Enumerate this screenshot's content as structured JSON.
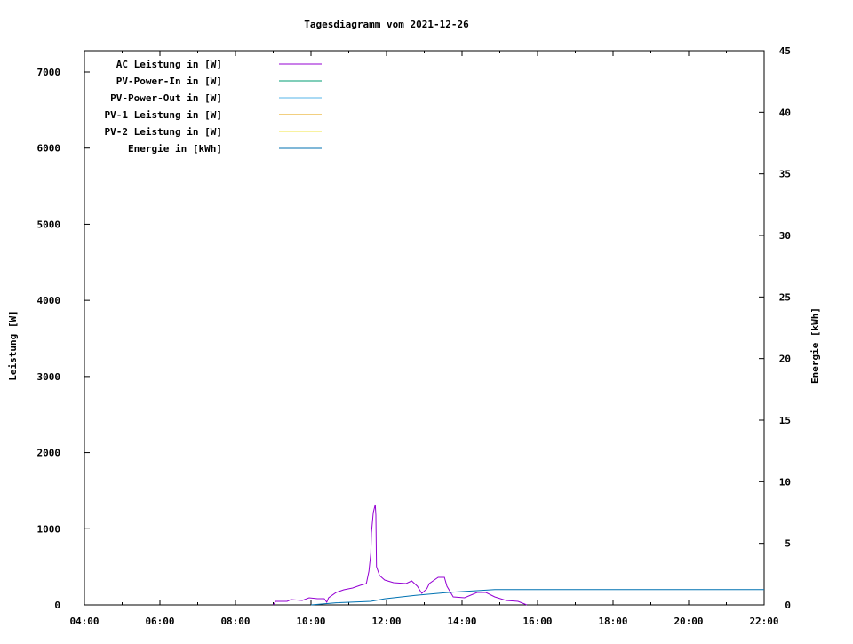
{
  "chart_data": {
    "type": "line",
    "title": "Tagesdiagramm vom 2021-12-26",
    "ylabel": "Leistung [W]",
    "y2label": "Energie [kWh]",
    "xlim": [
      "04:00",
      "22:00"
    ],
    "ylim": [
      0,
      7280
    ],
    "y2lim": [
      0,
      45
    ],
    "xticks": [
      "04:00",
      "06:00",
      "08:00",
      "10:00",
      "12:00",
      "14:00",
      "16:00",
      "18:00",
      "20:00",
      "22:00"
    ],
    "yticks": [
      0,
      1000,
      2000,
      3000,
      4000,
      5000,
      6000,
      7000
    ],
    "y2ticks": [
      0,
      5,
      10,
      15,
      20,
      25,
      30,
      35,
      40,
      45
    ],
    "grid": false,
    "legend_position": "top-left",
    "series": [
      {
        "name": "AC Leistung in [W]",
        "axis": "y",
        "color": "#9400d3",
        "x": [
          "09:00",
          "09:04",
          "09:22",
          "09:28",
          "09:46",
          "09:57",
          "10:10",
          "10:21",
          "10:25",
          "10:28",
          "10:40",
          "10:52",
          "11:06",
          "11:18",
          "11:28",
          "11:32",
          "11:35",
          "11:36",
          "11:39",
          "11:42",
          "11:43",
          "11:44",
          "11:49",
          "11:57",
          "12:11",
          "12:31",
          "12:40",
          "12:49",
          "12:56",
          "13:04",
          "13:08",
          "13:22",
          "13:32",
          "13:36",
          "13:46",
          "14:04",
          "14:24",
          "14:38",
          "14:52",
          "15:10",
          "15:29",
          "15:43"
        ],
        "y": [
          0,
          47,
          47,
          70,
          58,
          93,
          82,
          82,
          35,
          93,
          163,
          198,
          222,
          257,
          280,
          443,
          677,
          945,
          1213,
          1318,
          1178,
          502,
          385,
          327,
          292,
          280,
          315,
          245,
          152,
          210,
          280,
          362,
          362,
          245,
          105,
          93,
          163,
          163,
          105,
          58,
          47,
          0
        ]
      },
      {
        "name": "PV-Power-In in [W]",
        "axis": "y",
        "color": "#009e73",
        "x": [],
        "y": []
      },
      {
        "name": "PV-Power-Out in [W]",
        "axis": "y",
        "color": "#56b4e9",
        "x": [],
        "y": []
      },
      {
        "name": "PV-1 Leistung in [W]",
        "axis": "y",
        "color": "#e69f00",
        "x": [],
        "y": []
      },
      {
        "name": "PV-2 Leistung in [W]",
        "axis": "y",
        "color": "#f0e442",
        "x": [],
        "y": []
      },
      {
        "name": "Energie in [kWh]",
        "axis": "y2",
        "color": "#0072b2",
        "x": [
          "10:00",
          "10:40",
          "11:35",
          "11:57",
          "12:46",
          "13:36",
          "14:38",
          "14:52",
          "22:00"
        ],
        "y": [
          0,
          0.17,
          0.29,
          0.5,
          0.77,
          1.0,
          1.2,
          1.25,
          1.25
        ]
      }
    ]
  }
}
